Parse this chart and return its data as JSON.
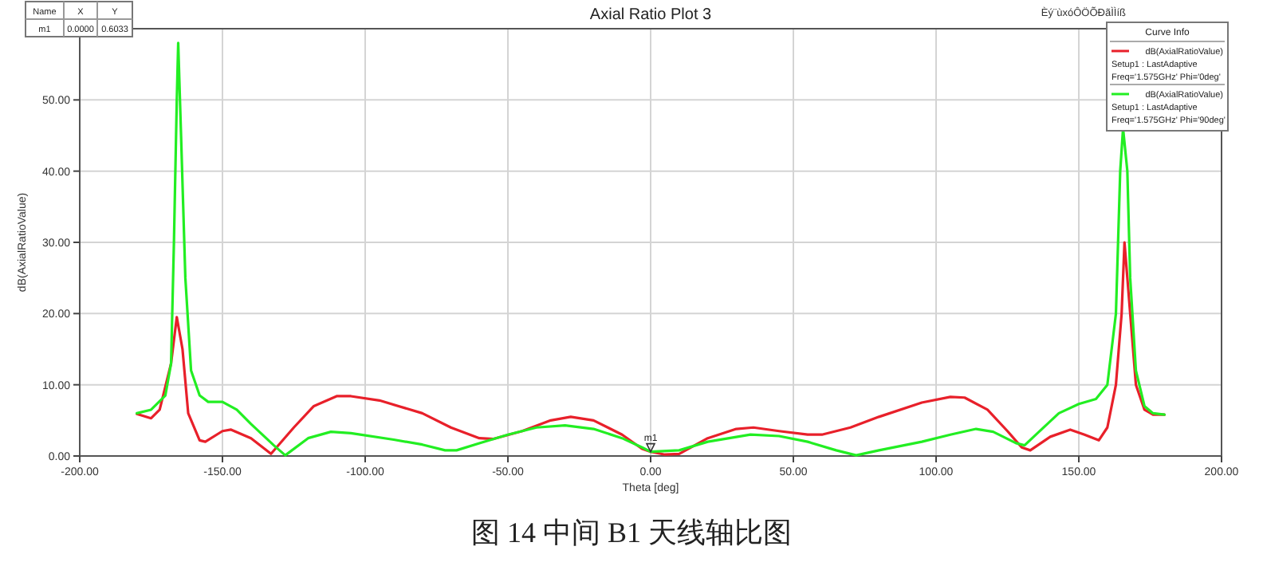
{
  "chart_data": {
    "type": "line",
    "title": "Axial Ratio Plot 3",
    "xlabel": "Theta [deg]",
    "ylabel": "dB(AxialRatioValue)",
    "legend_title": "Curve Info",
    "xlim": [
      -200,
      200
    ],
    "xticks": [
      {
        "value": -200,
        "label": "-200.00"
      },
      {
        "value": -150,
        "label": "-150.00"
      },
      {
        "value": -100,
        "label": "-100.00"
      },
      {
        "value": -50,
        "label": "-50.00"
      },
      {
        "value": 0,
        "label": "0.00"
      },
      {
        "value": 50,
        "label": "50.00"
      },
      {
        "value": 100,
        "label": "100.00"
      },
      {
        "value": 150,
        "label": "150.00"
      },
      {
        "value": 200,
        "label": "200.00"
      }
    ],
    "ylim": [
      0,
      60
    ],
    "yticks": [
      {
        "value": 0,
        "label": "0.00"
      },
      {
        "value": 10,
        "label": "10.00"
      },
      {
        "value": 20,
        "label": "20.00"
      },
      {
        "value": 30,
        "label": "30.00"
      },
      {
        "value": 40,
        "label": "40.00"
      },
      {
        "value": 50,
        "label": "50.00"
      },
      {
        "value": 60,
        "label": null
      }
    ],
    "grid": true,
    "legend": "top right",
    "marker": "none",
    "line_style": "solid",
    "series": [
      {
        "name": "dB(AxialRatioValue)\nSetup1 : LastAdaptive\nFreq='1.575GHz' Phi='0deg'",
        "color": "#e8202a",
        "x": [
          -180,
          -175,
          -172,
          -168,
          -166,
          -164,
          -162,
          -158,
          -156,
          -150,
          -147,
          -140,
          -133,
          -125,
          -118,
          -110,
          -105,
          -95,
          -80,
          -70,
          -60,
          -55,
          -45,
          -35,
          -28,
          -20,
          -10,
          -3,
          0,
          5,
          10,
          20,
          30,
          36,
          45,
          55,
          60,
          70,
          80,
          95,
          105,
          110,
          118,
          125,
          130,
          133,
          140,
          147,
          152,
          157,
          160,
          163,
          165,
          166,
          168,
          170,
          173,
          176,
          180
        ],
        "values": [
          5.9,
          5.3,
          6.5,
          13,
          19.5,
          15,
          6,
          2.2,
          2.0,
          3.5,
          3.7,
          2.5,
          0.3,
          4,
          7,
          8.4,
          8.4,
          7.8,
          6,
          4,
          2.5,
          2.4,
          3.5,
          5,
          5.5,
          5,
          3,
          1,
          0.6,
          0.2,
          0.3,
          2.5,
          3.8,
          4,
          3.5,
          3,
          3,
          4,
          5.5,
          7.5,
          8.3,
          8.2,
          6.5,
          3.5,
          1.2,
          0.8,
          2.7,
          3.7,
          3,
          2.2,
          4,
          10,
          20,
          30,
          20,
          10,
          6.5,
          5.8,
          5.8
        ]
      },
      {
        "name": "dB(AxialRatioValue)\nSetup1 : LastAdaptive\nFreq='1.575GHz' Phi='90deg'",
        "color": "#22ee22",
        "x": [
          -180,
          -175,
          -170,
          -168,
          -167,
          -166,
          -165.5,
          -164.5,
          -163,
          -161,
          -158,
          -155,
          -150,
          -145,
          -140,
          -132,
          -128,
          -120,
          -112,
          -105,
          -90,
          -80,
          -72,
          -68,
          -60,
          -50,
          -40,
          -30,
          -20,
          -10,
          -3,
          0,
          10,
          20,
          35,
          45,
          55,
          65,
          72,
          80,
          95,
          105,
          114,
          120,
          128,
          131,
          135,
          143,
          150,
          156,
          160,
          163,
          164.5,
          165.5,
          167,
          168,
          170,
          173,
          176,
          180
        ],
        "values": [
          6,
          6.5,
          8.5,
          13,
          30,
          50,
          58,
          45,
          25,
          12,
          8.5,
          7.6,
          7.6,
          6.5,
          4.5,
          1.5,
          0.1,
          2.5,
          3.4,
          3.2,
          2.3,
          1.6,
          0.8,
          0.8,
          1.8,
          3,
          4,
          4.3,
          3.8,
          2.5,
          1.2,
          0.6,
          0.8,
          2,
          3,
          2.8,
          2,
          0.8,
          0.1,
          0.8,
          2,
          3,
          3.8,
          3.4,
          1.8,
          1.5,
          3,
          6,
          7.3,
          8,
          10,
          20,
          40,
          46,
          40,
          25,
          12,
          7,
          6,
          5.8
        ]
      }
    ],
    "annotations": [
      "图 14  中间 B1 天线轴比图",
      "Èý¨ùxóÔÖÕÐãÌÌíß",
      {
        "text": "m1",
        "x": 0,
        "y": 0.6033
      },
      "Name",
      "X",
      "Y",
      "m1",
      "0.0000",
      "0.6033"
    ]
  }
}
